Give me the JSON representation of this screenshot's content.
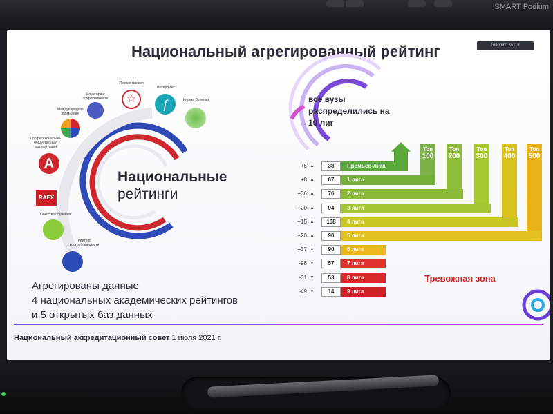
{
  "device": {
    "brand": "SMART Podium"
  },
  "slide": {
    "title": "Национальный агрегированный рейтинг",
    "participant_label": "Говорит: №118",
    "national_ratings_title": "Национальные",
    "national_ratings_sub": "рейтинги",
    "aggregated_lines": [
      "Агрегированы данные",
      "4 национальных академических рейтингов",
      "и 5 открытых баз данных"
    ],
    "all_universities": "все вузы распределились на 10 лиг",
    "alarm_zone": "Тревожная зона",
    "footer_bold": "Национальный аккредитационный совет",
    "footer_date": " 1 июля 2021 г.",
    "icons": [
      {
        "name": "Мониторинг эффективности"
      },
      {
        "name": "Международное признание"
      },
      {
        "name": "Профессионально-общественная аккредитация"
      },
      {
        "name": "RAEX"
      },
      {
        "name": "Качество обучения"
      },
      {
        "name": "Рейтинг востребованности"
      },
      {
        "name": "Первая миссия"
      },
      {
        "name": "Интерфакс"
      },
      {
        "name": "Индекс Зеленый"
      }
    ],
    "top_labels": [
      {
        "top": "Топ",
        "value": "100",
        "color": "#7db24a"
      },
      {
        "top": "Топ",
        "value": "200",
        "color": "#8fbd3a"
      },
      {
        "top": "Топ",
        "value": "300",
        "color": "#a9c930"
      },
      {
        "top": "Топ",
        "value": "400",
        "color": "#d9c21e"
      },
      {
        "top": "Топ",
        "value": "500",
        "color": "#e8b21a"
      }
    ],
    "leagues": [
      {
        "delta": "+6",
        "dir": "up",
        "count": "38",
        "label": "Премьер-лига",
        "color": "#5aa83a"
      },
      {
        "delta": "+8",
        "dir": "up",
        "count": "67",
        "label": "1 лига",
        "color": "#74b13a"
      },
      {
        "delta": "+36",
        "dir": "up",
        "count": "76",
        "label": "2 лига",
        "color": "#8bbb36"
      },
      {
        "delta": "+20",
        "dir": "up",
        "count": "94",
        "label": "3 лига",
        "color": "#a4c532"
      },
      {
        "delta": "+15",
        "dir": "up",
        "count": "108",
        "label": "4 лига",
        "color": "#c9c624"
      },
      {
        "delta": "+20",
        "dir": "up",
        "count": "90",
        "label": "5 лига",
        "color": "#e2c020"
      },
      {
        "delta": "+37",
        "dir": "up",
        "count": "90",
        "label": "6 лига",
        "color": "#edb61c"
      },
      {
        "delta": "-98",
        "dir": "down",
        "count": "57",
        "label": "7 лига",
        "color": "#e0332e"
      },
      {
        "delta": "-31",
        "dir": "down",
        "count": "53",
        "label": "8 лига",
        "color": "#d92a2a"
      },
      {
        "delta": "-49",
        "dir": "down",
        "count": "14",
        "label": "9 лига",
        "color": "#cf2226"
      }
    ]
  }
}
